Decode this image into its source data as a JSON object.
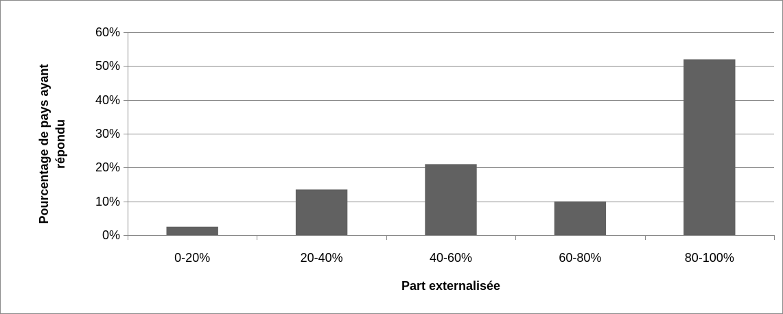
{
  "chart_data": {
    "type": "bar",
    "categories": [
      "0-20%",
      "20-40%",
      "40-60%",
      "60-80%",
      "80-100%"
    ],
    "values": [
      2.5,
      13.5,
      21,
      10,
      52
    ],
    "title": "",
    "xlabel": "Part externalisée",
    "ylabel": "Pourcentage de pays ayant répondu",
    "ylabel_lines": [
      "Pourcentage de pays ayant",
      "répondu"
    ],
    "ylim": [
      0,
      60
    ],
    "yticks": [
      0,
      10,
      20,
      30,
      40,
      50,
      60
    ],
    "ytick_labels": [
      "0%",
      "10%",
      "20%",
      "30%",
      "40%",
      "50%",
      "60%"
    ],
    "grid": true,
    "legend": "none",
    "colors": {
      "bar": "#616161",
      "gridline": "#898989",
      "axis": "#898989",
      "frame": "#898989"
    }
  }
}
